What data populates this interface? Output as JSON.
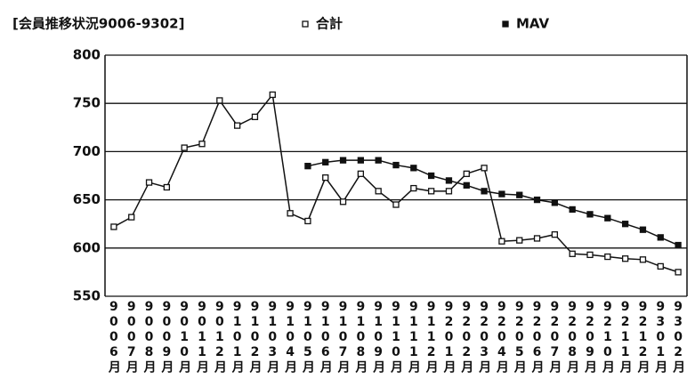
{
  "chart_data": {
    "type": "line",
    "title": "[会員推移状況9006-9302]",
    "categories": [
      "9006月",
      "9007月",
      "9008月",
      "9009月",
      "9010月",
      "9011月",
      "9012月",
      "9101月",
      "9102月",
      "9103月",
      "9104月",
      "9105月",
      "9106月",
      "9107月",
      "9108月",
      "9109月",
      "9110月",
      "9111月",
      "9112月",
      "9201月",
      "9202月",
      "9203月",
      "9204月",
      "9205月",
      "9206月",
      "9207月",
      "9208月",
      "9209月",
      "9210月",
      "9211月",
      "9212月",
      "9301月",
      "9302月"
    ],
    "series": [
      {
        "name": "合計",
        "color": "#111111",
        "marker": "open",
        "values": [
          622,
          632,
          668,
          663,
          704,
          708,
          753,
          727,
          736,
          759,
          636,
          628,
          673,
          648,
          677,
          659,
          645,
          662,
          659,
          659,
          677,
          683,
          607,
          608,
          610,
          614,
          594,
          593,
          591,
          589,
          588,
          581,
          575
        ]
      },
      {
        "name": "MAV",
        "color": "#111111",
        "marker": "filled",
        "values": [
          null,
          null,
          null,
          null,
          null,
          null,
          null,
          null,
          null,
          null,
          null,
          685,
          689,
          691,
          691,
          691,
          686,
          683,
          675,
          670,
          665,
          659,
          656,
          655,
          650,
          647,
          640,
          635,
          631,
          625,
          619,
          611,
          603
        ]
      }
    ],
    "ylim": [
      550,
      800
    ],
    "yticks": [
      550,
      600,
      650,
      700,
      750,
      800
    ],
    "grid": true
  }
}
